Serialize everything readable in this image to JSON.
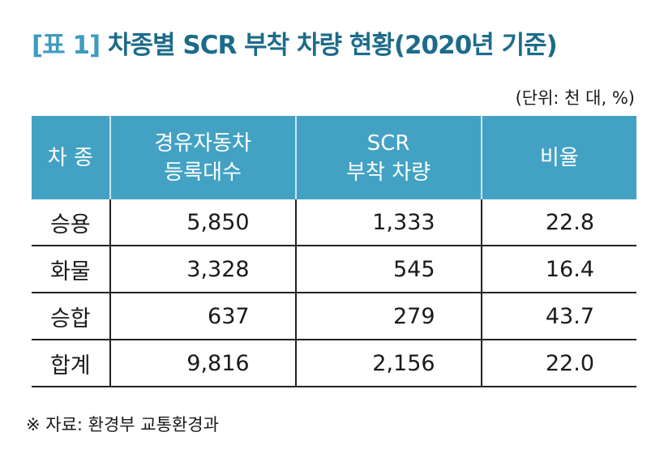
{
  "title": {
    "tag": "[표 1]",
    "text": "차종별 SCR 부착 차량 현황(2020년 기준)"
  },
  "unit": "(단위: 천 대, %)",
  "table": {
    "headers": [
      {
        "line1": "차 종",
        "line2": ""
      },
      {
        "line1": "경유자동차",
        "line2": "등록대수"
      },
      {
        "line1": "SCR",
        "line2": "부착 차량"
      },
      {
        "line1": "비율",
        "line2": ""
      }
    ],
    "rows": [
      {
        "type": "승용",
        "diesel_registered": "5,850",
        "scr_equipped": "1,333",
        "ratio": "22.8"
      },
      {
        "type": "화물",
        "diesel_registered": "3,328",
        "scr_equipped": "545",
        "ratio": "16.4"
      },
      {
        "type": "승합",
        "diesel_registered": "637",
        "scr_equipped": "279",
        "ratio": "43.7"
      },
      {
        "type": "합계",
        "diesel_registered": "9,816",
        "scr_equipped": "2,156",
        "ratio": "22.0"
      }
    ]
  },
  "source": "※ 자료: 환경부 교통환경과",
  "colors": {
    "header_bg": "#43a2c3",
    "title_tag": "#3e9bc0",
    "title_main": "#1d6b8a"
  }
}
